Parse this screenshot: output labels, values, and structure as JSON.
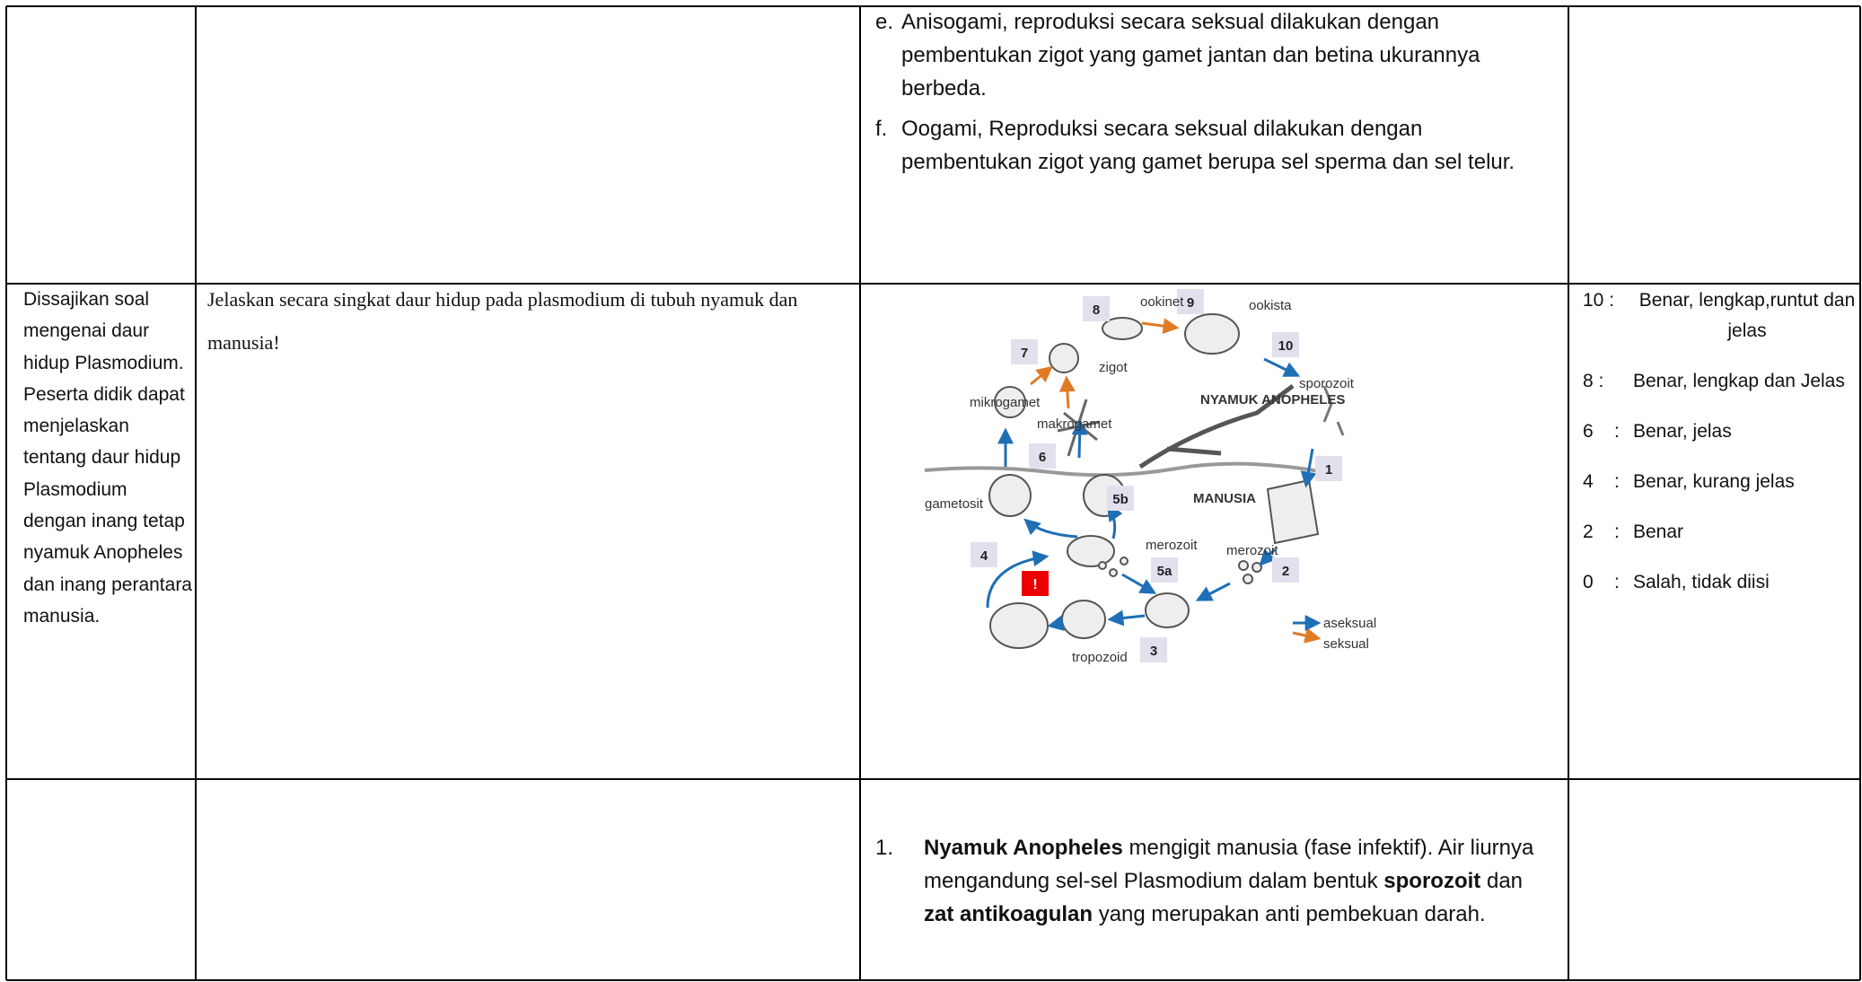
{
  "table": {
    "rows": [
      {
        "cells": [
          {
            "text": ""
          },
          {
            "text": ""
          },
          {
            "items": [
              {
                "marker": "e.",
                "text": "Anisogami, reproduksi secara seksual dilakukan dengan pembentukan zigot yang gamet jantan dan betina ukurannya berbeda."
              },
              {
                "marker": "f.",
                "text": "Oogami, Reproduksi secara seksual dilakukan dengan pembentukan zigot yang gamet berupa sel sperma dan sel telur."
              }
            ]
          },
          {
            "text": ""
          }
        ]
      },
      {
        "cells": [
          {
            "text": "Dissajikan soal mengenai daur hidup Plasmodium. Peserta didik dapat menjelaskan tentang daur hidup Plasmodium dengan inang tetap nyamuk Anopheles dan inang perantara manusia."
          },
          {
            "text": "Jelaskan secara singkat daur hidup pada plasmodium di tubuh nyamuk dan manusia!"
          },
          {
            "diagram": {
              "labels": [
                "ookinet",
                "ookista",
                "zigot",
                "sporozoit",
                "NYAMUK ANOPHELES",
                "mikrogamet",
                "makrogamet",
                "MANUSIA",
                "gametosit",
                "merozoit",
                "merozoit",
                "tropozoid",
                "aseksual",
                "seksual"
              ],
              "steps": [
                "8",
                "9",
                "10",
                "7",
                "6",
                "1",
                "5b",
                "4",
                "5a",
                "2",
                "3"
              ],
              "warning": "!"
            }
          },
          {
            "grades": [
              {
                "score": "10 :",
                "text": "Benar, lengkap,runtut dan jelas"
              },
              {
                "score": "8 :",
                "text": "Benar, lengkap dan Jelas"
              },
              {
                "score": "6    :",
                "text": "Benar, jelas"
              },
              {
                "score": "4    :",
                "text": "Benar, kurang jelas"
              },
              {
                "score": "2    :",
                "text": "Benar"
              },
              {
                "score": "0    :",
                "text": "Salah, tidak diisi"
              }
            ]
          }
        ]
      },
      {
        "cells": [
          {
            "text": ""
          },
          {
            "text": ""
          },
          {
            "items": [
              {
                "marker": "1.",
                "segments": [
                  {
                    "text": "Nyamuk Anopheles",
                    "bold": true
                  },
                  {
                    "text": " mengigit manusia (fase infektif).  Air liurnya mengandung sel-sel Plasmodium dalam bentuk ",
                    "bold": false
                  },
                  {
                    "text": "sporozoit",
                    "bold": true
                  },
                  {
                    "text": " dan ",
                    "bold": false
                  },
                  {
                    "text": "zat antikoagulan",
                    "bold": true
                  },
                  {
                    "text": " yang merupakan anti pembekuan darah.",
                    "bold": false
                  }
                ]
              }
            ]
          },
          {
            "text": ""
          }
        ]
      }
    ]
  }
}
